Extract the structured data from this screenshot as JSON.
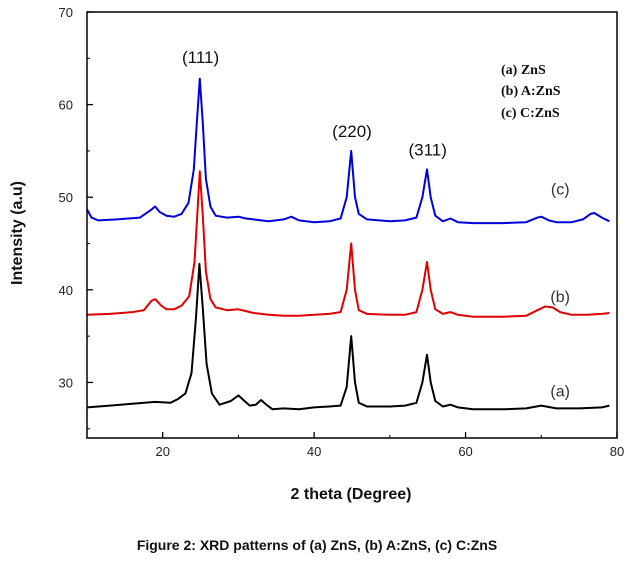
{
  "caption": "Figure 2:  XRD patterns of  (a) ZnS, (b) A:ZnS, (c) C:ZnS",
  "chart_data": {
    "type": "line",
    "xlabel": "2 theta (Degree)",
    "ylabel": "Intensity (a.u)",
    "xlim": [
      10,
      80
    ],
    "ylim": [
      24,
      70
    ],
    "xticks": [
      20,
      40,
      60,
      80
    ],
    "yticks": [
      30,
      40,
      50,
      60,
      70
    ],
    "legend": [
      "(a) ZnS",
      "(b) A:ZnS",
      "(c) C:ZnS"
    ],
    "annotations": [
      {
        "text": "(111)",
        "x": 25,
        "y": 64.5
      },
      {
        "text": "(220)",
        "x": 45,
        "y": 56.5
      },
      {
        "text": "(311)",
        "x": 55,
        "y": 54.5
      }
    ],
    "series": [
      {
        "name": "(a) ZnS",
        "label": "(a)",
        "color": "#000000",
        "label_pos": {
          "x": 72.5,
          "y": 28.5
        },
        "points": [
          [
            10,
            27.3
          ],
          [
            13,
            27.5
          ],
          [
            16,
            27.7
          ],
          [
            19,
            27.9
          ],
          [
            21,
            27.8
          ],
          [
            22,
            28.2
          ],
          [
            23,
            28.8
          ],
          [
            23.8,
            31
          ],
          [
            24.4,
            37
          ],
          [
            24.85,
            42.8
          ],
          [
            25.3,
            38
          ],
          [
            25.8,
            32
          ],
          [
            26.5,
            28.8
          ],
          [
            27.5,
            27.6
          ],
          [
            29,
            28
          ],
          [
            30,
            28.6
          ],
          [
            30.8,
            28
          ],
          [
            31.5,
            27.5
          ],
          [
            32.3,
            27.6
          ],
          [
            33,
            28.1
          ],
          [
            33.7,
            27.6
          ],
          [
            34.5,
            27.1
          ],
          [
            36,
            27.2
          ],
          [
            38,
            27.1
          ],
          [
            40,
            27.3
          ],
          [
            42,
            27.4
          ],
          [
            43.5,
            27.5
          ],
          [
            44.3,
            29.5
          ],
          [
            44.9,
            35
          ],
          [
            45.4,
            30
          ],
          [
            45.9,
            27.8
          ],
          [
            47,
            27.4
          ],
          [
            50,
            27.4
          ],
          [
            52,
            27.5
          ],
          [
            53.5,
            27.8
          ],
          [
            54.3,
            30
          ],
          [
            54.9,
            33
          ],
          [
            55.4,
            30
          ],
          [
            56,
            28
          ],
          [
            57,
            27.4
          ],
          [
            58,
            27.6
          ],
          [
            59,
            27.3
          ],
          [
            61,
            27.1
          ],
          [
            65,
            27.1
          ],
          [
            68,
            27.2
          ],
          [
            70,
            27.5
          ],
          [
            72,
            27.2
          ],
          [
            75,
            27.2
          ],
          [
            78,
            27.3
          ],
          [
            79,
            27.5
          ]
        ]
      },
      {
        "name": "(b) A:ZnS",
        "label": "(b)",
        "color": "#e00000",
        "label_pos": {
          "x": 72.5,
          "y": 38.7
        },
        "points": [
          [
            10,
            37.3
          ],
          [
            13,
            37.4
          ],
          [
            16,
            37.6
          ],
          [
            17.5,
            37.8
          ],
          [
            18.5,
            38.8
          ],
          [
            19,
            39
          ],
          [
            19.8,
            38.3
          ],
          [
            20.5,
            37.9
          ],
          [
            21.5,
            37.9
          ],
          [
            22.5,
            38.3
          ],
          [
            23.5,
            39.3
          ],
          [
            24.2,
            43
          ],
          [
            24.6,
            48.5
          ],
          [
            24.9,
            52.8
          ],
          [
            25.3,
            48
          ],
          [
            25.7,
            42
          ],
          [
            26.3,
            39
          ],
          [
            27,
            38.1
          ],
          [
            28.5,
            37.8
          ],
          [
            30,
            37.9
          ],
          [
            31,
            37.7
          ],
          [
            32,
            37.5
          ],
          [
            34,
            37.3
          ],
          [
            36,
            37.2
          ],
          [
            38,
            37.2
          ],
          [
            40,
            37.3
          ],
          [
            42,
            37.4
          ],
          [
            43.5,
            37.6
          ],
          [
            44.3,
            40
          ],
          [
            44.9,
            45
          ],
          [
            45.4,
            40
          ],
          [
            45.9,
            37.8
          ],
          [
            47,
            37.4
          ],
          [
            50,
            37.3
          ],
          [
            52,
            37.3
          ],
          [
            53.5,
            37.6
          ],
          [
            54.3,
            40
          ],
          [
            54.9,
            43
          ],
          [
            55.4,
            40
          ],
          [
            56,
            37.9
          ],
          [
            57,
            37.4
          ],
          [
            58,
            37.6
          ],
          [
            59,
            37.3
          ],
          [
            61,
            37.1
          ],
          [
            65,
            37.1
          ],
          [
            68,
            37.2
          ],
          [
            69.5,
            37.8
          ],
          [
            70.5,
            38.2
          ],
          [
            71.5,
            38.1
          ],
          [
            72.5,
            37.6
          ],
          [
            74,
            37.3
          ],
          [
            76,
            37.3
          ],
          [
            78,
            37.4
          ],
          [
            79,
            37.5
          ]
        ]
      },
      {
        "name": "(c) C:ZnS",
        "label": "(c)",
        "color": "#0000dd",
        "label_pos": {
          "x": 72.5,
          "y": 50.3
        },
        "points": [
          [
            10,
            48.7
          ],
          [
            10.6,
            47.8
          ],
          [
            11.5,
            47.5
          ],
          [
            14,
            47.6
          ],
          [
            17,
            47.8
          ],
          [
            18.4,
            48.6
          ],
          [
            19,
            49
          ],
          [
            19.6,
            48.4
          ],
          [
            20.5,
            48
          ],
          [
            21.5,
            47.9
          ],
          [
            22.5,
            48.2
          ],
          [
            23.4,
            49.4
          ],
          [
            24.1,
            53
          ],
          [
            24.5,
            58
          ],
          [
            24.9,
            62.8
          ],
          [
            25.3,
            58
          ],
          [
            25.7,
            52
          ],
          [
            26.3,
            49
          ],
          [
            27,
            48
          ],
          [
            28.5,
            47.8
          ],
          [
            30,
            47.9
          ],
          [
            31,
            47.7
          ],
          [
            32,
            47.6
          ],
          [
            34,
            47.4
          ],
          [
            36,
            47.6
          ],
          [
            37,
            47.9
          ],
          [
            38,
            47.5
          ],
          [
            40,
            47.3
          ],
          [
            42,
            47.4
          ],
          [
            43.5,
            47.7
          ],
          [
            44.3,
            50
          ],
          [
            44.9,
            55
          ],
          [
            45.4,
            50
          ],
          [
            45.9,
            48.2
          ],
          [
            47,
            47.6
          ],
          [
            50,
            47.4
          ],
          [
            52,
            47.5
          ],
          [
            53.5,
            47.8
          ],
          [
            54.3,
            50
          ],
          [
            54.9,
            53
          ],
          [
            55.4,
            50
          ],
          [
            56,
            48
          ],
          [
            57,
            47.4
          ],
          [
            58,
            47.7
          ],
          [
            59,
            47.3
          ],
          [
            61,
            47.2
          ],
          [
            65,
            47.2
          ],
          [
            68,
            47.3
          ],
          [
            69.5,
            47.8
          ],
          [
            70,
            47.9
          ],
          [
            71,
            47.5
          ],
          [
            72,
            47.3
          ],
          [
            74,
            47.3
          ],
          [
            75.5,
            47.6
          ],
          [
            76.5,
            48.2
          ],
          [
            77,
            48.3
          ],
          [
            78,
            47.8
          ],
          [
            79,
            47.4
          ]
        ]
      }
    ]
  }
}
